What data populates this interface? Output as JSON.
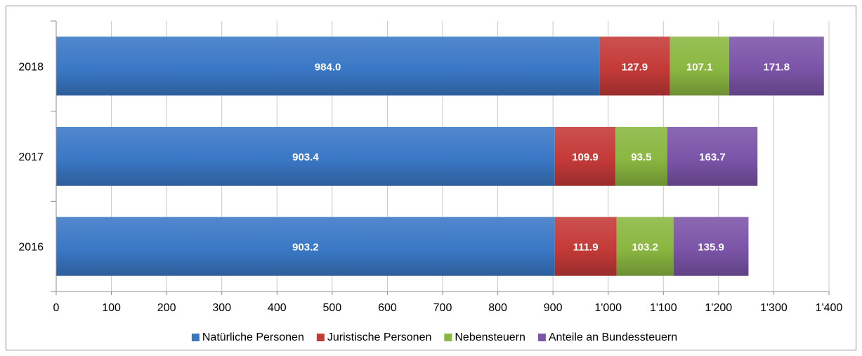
{
  "chart_data": {
    "type": "bar",
    "orientation": "horizontal",
    "stacked": true,
    "categories": [
      "2018",
      "2017",
      "2016"
    ],
    "series": [
      {
        "name": "Natürliche Personen",
        "color": "#3a78c6",
        "values": [
          984.0,
          903.4,
          903.2
        ],
        "labels": [
          "984.0",
          "903.4",
          "903.2"
        ]
      },
      {
        "name": "Juristische Personen",
        "color": "#c43a38",
        "values": [
          127.9,
          109.9,
          111.9
        ],
        "labels": [
          "127.9",
          "109.9",
          "111.9"
        ]
      },
      {
        "name": "Nebensteuern",
        "color": "#8ab740",
        "values": [
          107.1,
          93.5,
          103.2
        ],
        "labels": [
          "107.1",
          "93.5",
          "103.2"
        ]
      },
      {
        "name": "Anteile an Bundessteuern",
        "color": "#7b54a8",
        "values": [
          171.8,
          163.7,
          135.9
        ],
        "labels": [
          "171.8",
          "163.7",
          "135.9"
        ]
      }
    ],
    "xlim": [
      0,
      1400
    ],
    "xticks": [
      "0",
      "100",
      "200",
      "300",
      "400",
      "500",
      "600",
      "700",
      "800",
      "900",
      "1'000",
      "1'100",
      "1'200",
      "1'300",
      "1'400"
    ],
    "title": "",
    "xlabel": "",
    "ylabel": "",
    "grid": true,
    "legend": "bottom"
  }
}
